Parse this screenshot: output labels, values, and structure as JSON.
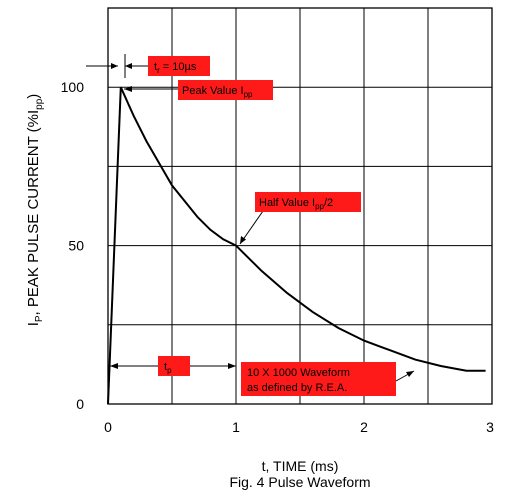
{
  "chart_data": {
    "type": "line",
    "title": "",
    "caption": "Fig. 4  Pulse Waveform",
    "xlabel": "t, TIME (ms)",
    "ylabel": {
      "base": "I",
      "sub1": "P",
      "mid": ", PEAK PULSE CURRENT (%I",
      "sub2": "pp",
      "end": ")"
    },
    "xlim": [
      0,
      3
    ],
    "ylim": [
      0,
      125
    ],
    "x_ticks": [
      "0",
      "1",
      "2",
      "3"
    ],
    "y_ticks": [
      "0",
      "50",
      "100"
    ],
    "grid": true,
    "series": [
      {
        "x": [
          0,
          0.1,
          0.2,
          0.3,
          0.4,
          0.5,
          0.6,
          0.7,
          0.8,
          0.9,
          1.0,
          1.2,
          1.4,
          1.6,
          1.8,
          2.0,
          2.2,
          2.4,
          2.6,
          2.8,
          2.95
        ],
        "y": [
          0,
          100,
          91,
          83,
          76,
          69,
          64,
          59,
          55,
          52,
          50,
          42,
          35,
          29,
          24,
          20,
          17,
          14,
          12,
          10.5,
          10.5
        ]
      }
    ],
    "annotations": {
      "tr": {
        "base": "t",
        "sub": "r",
        "rest": " = 10µs"
      },
      "peak": {
        "base": "Peak Value I",
        "sub": "pp"
      },
      "half": {
        "base": "Half Value I",
        "sub": "pp",
        "rest": "/2"
      },
      "tp": {
        "base": "t",
        "sub": "p"
      },
      "wave1": "10 X 1000 Waveform",
      "wave2": "as defined by R.E.A."
    }
  }
}
